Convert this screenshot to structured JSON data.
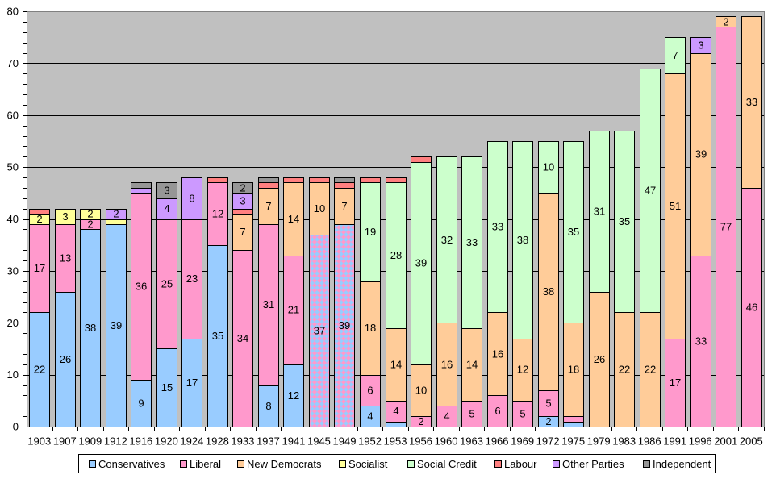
{
  "chart_data": {
    "type": "bar",
    "stacked": true,
    "categories": [
      "1903",
      "1907",
      "1909",
      "1912",
      "1916",
      "1920",
      "1924",
      "1928",
      "1933",
      "1937",
      "1941",
      "1945",
      "1949",
      "1952",
      "1953",
      "1956",
      "1960",
      "1963",
      "1966",
      "1969",
      "1972",
      "1975",
      "1979",
      "1983",
      "1986",
      "1991",
      "1996",
      "2001",
      "2005"
    ],
    "ylim": [
      0,
      80
    ],
    "y_ticks": [
      0,
      10,
      20,
      30,
      40,
      50,
      60,
      70,
      80
    ],
    "y_minor_step": 2,
    "grid": true,
    "legend_position": "bottom",
    "label_min_value": 2,
    "colors": {
      "plot_background": "#C0C0C0",
      "plot_border": "#808080",
      "gridline": "#000000",
      "axis": "#000000",
      "bar_outline": "#000000"
    },
    "coalition": {
      "colors": [
        "#99CCFF",
        "#FF99CC"
      ],
      "values": [
        0,
        0,
        0,
        0,
        0,
        0,
        0,
        0,
        0,
        0,
        0,
        37,
        39,
        0,
        0,
        0,
        0,
        0,
        0,
        0,
        0,
        0,
        0,
        0,
        0,
        0,
        0,
        0,
        0
      ]
    },
    "series": [
      {
        "name": "Conservatives",
        "color": "#99CCFF",
        "values": [
          22,
          26,
          38,
          39,
          9,
          15,
          17,
          35,
          0,
          8,
          12,
          0,
          0,
          4,
          1,
          0,
          0,
          0,
          0,
          0,
          2,
          1,
          0,
          0,
          0,
          0,
          0,
          0,
          0
        ]
      },
      {
        "name": "Liberal",
        "color": "#FF99CC",
        "values": [
          17,
          13,
          2,
          0,
          36,
          25,
          23,
          12,
          34,
          31,
          21,
          0,
          0,
          6,
          4,
          2,
          4,
          5,
          6,
          5,
          5,
          1,
          0,
          0,
          0,
          17,
          33,
          77,
          46
        ]
      },
      {
        "name": "New Democrats",
        "color": "#FFCC99",
        "values": [
          0,
          0,
          0,
          0,
          0,
          0,
          0,
          0,
          7,
          7,
          14,
          10,
          7,
          18,
          14,
          10,
          16,
          14,
          16,
          12,
          38,
          18,
          26,
          22,
          22,
          51,
          39,
          2,
          33
        ]
      },
      {
        "name": "Socialist",
        "color": "#FFFF99",
        "values": [
          2,
          3,
          2,
          1,
          0,
          0,
          0,
          0,
          0,
          0,
          0,
          0,
          0,
          0,
          0,
          0,
          0,
          0,
          0,
          0,
          0,
          0,
          0,
          0,
          0,
          0,
          0,
          0,
          0
        ]
      },
      {
        "name": "Social Credit",
        "color": "#CCFFCC",
        "values": [
          0,
          0,
          0,
          0,
          0,
          0,
          0,
          0,
          0,
          0,
          0,
          0,
          0,
          19,
          28,
          39,
          32,
          33,
          33,
          38,
          10,
          35,
          31,
          35,
          47,
          7,
          0,
          0,
          0
        ]
      },
      {
        "name": "Labour",
        "color": "#FF8080",
        "values": [
          1,
          0,
          0,
          0,
          0,
          0,
          0,
          1,
          1,
          1,
          1,
          1,
          1,
          1,
          1,
          1,
          0,
          0,
          0,
          0,
          0,
          0,
          0,
          0,
          0,
          0,
          0,
          0,
          0
        ]
      },
      {
        "name": "Other Parties",
        "color": "#CC99FF",
        "values": [
          0,
          0,
          0,
          2,
          1,
          4,
          8,
          0,
          3,
          0,
          0,
          0,
          0,
          0,
          0,
          0,
          0,
          0,
          0,
          0,
          0,
          0,
          0,
          0,
          0,
          0,
          3,
          0,
          0
        ]
      },
      {
        "name": "Independent",
        "color": "#969696",
        "values": [
          0,
          0,
          0,
          0,
          1,
          3,
          0,
          0,
          2,
          1,
          0,
          0,
          1,
          0,
          0,
          0,
          0,
          0,
          0,
          0,
          0,
          0,
          0,
          0,
          0,
          0,
          0,
          0,
          0
        ]
      }
    ]
  }
}
